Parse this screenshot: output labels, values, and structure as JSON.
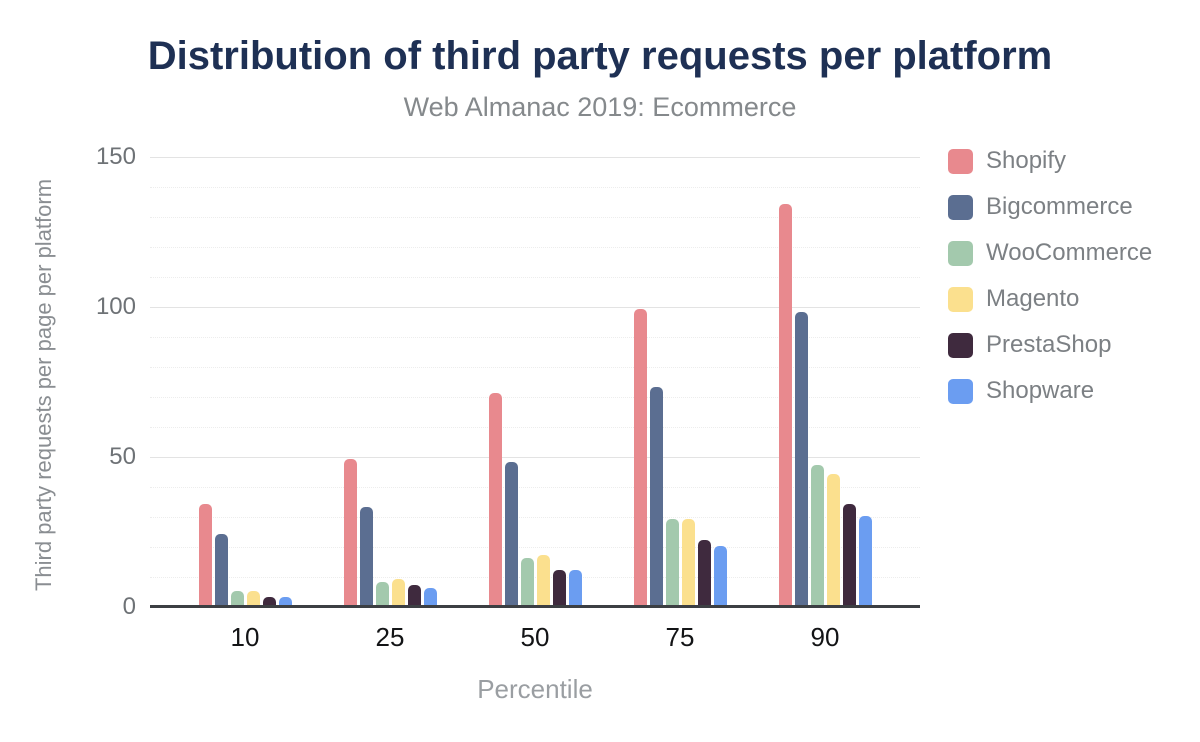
{
  "title": "Distribution of third party requests per platform",
  "subtitle": "Web Almanac 2019: Ecommerce",
  "chart_data": {
    "type": "bar",
    "title": "Distribution of third party requests per platform",
    "subtitle": "Web Almanac 2019: Ecommerce",
    "xlabel": "Percentile",
    "ylabel": "Third party requests per page per platform",
    "categories": [
      "10",
      "25",
      "50",
      "75",
      "90"
    ],
    "series": [
      {
        "name": "Shopify",
        "color": "#e8898e",
        "values": [
          34,
          49,
          71,
          99,
          134
        ]
      },
      {
        "name": "Bigcommerce",
        "color": "#5b6e91",
        "values": [
          24,
          33,
          48,
          73,
          98
        ]
      },
      {
        "name": "WooCommerce",
        "color": "#a3c9ad",
        "values": [
          5,
          8,
          16,
          29,
          47
        ]
      },
      {
        "name": "Magento",
        "color": "#fbe08e",
        "values": [
          5,
          9,
          17,
          29,
          44
        ]
      },
      {
        "name": "PrestaShop",
        "color": "#3f2a3e",
        "values": [
          3,
          7,
          12,
          22,
          34
        ]
      },
      {
        "name": "Shopware",
        "color": "#6b9df1",
        "values": [
          3,
          6,
          12,
          20,
          30
        ]
      }
    ],
    "y_ticks": [
      0,
      50,
      100,
      150
    ],
    "ylim": [
      0,
      150
    ],
    "minor_grid_step": 10,
    "grid": true,
    "legend_position": "right"
  },
  "colors": {
    "title": "#1e3054",
    "subtitle": "#85898c",
    "y_tick_label": "#6e7276",
    "x_tick_label": "#131416",
    "axis_title": "#9a9ea2",
    "legend_text": "#7c8084",
    "axis_line": "#3c3f43",
    "background": "#ffffff"
  }
}
